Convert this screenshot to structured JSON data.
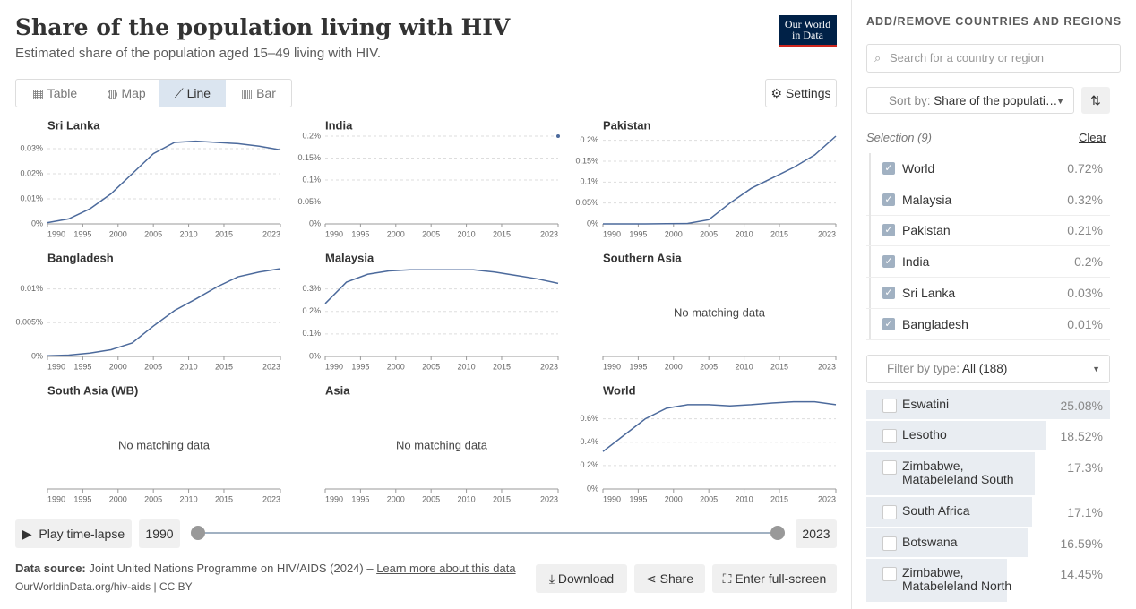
{
  "header": {
    "title": "Share of the population living with HIV",
    "subtitle": "Estimated share of the population aged 15–49 living with HIV.",
    "logo": [
      "Our World",
      "in Data"
    ]
  },
  "tabs": [
    "Table",
    "Map",
    "Line",
    "Bar"
  ],
  "active_tab": 2,
  "settings": "Settings",
  "chart_data": [
    {
      "type": "line",
      "title": "Sri Lanka",
      "color": "#4c6a9c",
      "x": [
        1990,
        1993,
        1996,
        1999,
        2002,
        2005,
        2008,
        2011,
        2014,
        2017,
        2020,
        2023
      ],
      "values": [
        0.0005,
        0.002,
        0.006,
        0.012,
        0.02,
        0.028,
        0.0325,
        0.033,
        0.0325,
        0.032,
        0.031,
        0.0295
      ],
      "xlim": [
        1990,
        2023
      ],
      "xticks": [
        1990,
        1995,
        2000,
        2005,
        2010,
        2015,
        2023
      ],
      "ylim": [
        0,
        0.035
      ],
      "yticks": [
        {
          "value": 0,
          "label": "0%"
        },
        {
          "value": 0.01,
          "label": "0.01%"
        },
        {
          "value": 0.02,
          "label": "0.02%"
        },
        {
          "value": 0.03,
          "label": "0.03%"
        }
      ],
      "grid": true
    },
    {
      "type": "line",
      "title": "India",
      "color": "#4c6a9c",
      "x": [
        1990,
        1993,
        1996,
        1999,
        2002,
        2005,
        2008,
        2011,
        2014,
        2017,
        2020,
        2023
      ],
      "values": [
        null,
        null,
        null,
        null,
        null,
        null,
        null,
        null,
        null,
        null,
        null,
        0.2
      ],
      "xlim": [
        1990,
        2023
      ],
      "xticks": [
        1990,
        1995,
        2000,
        2005,
        2010,
        2015,
        2023
      ],
      "ylim": [
        0,
        0.2
      ],
      "yticks": [
        {
          "value": 0,
          "label": "0%"
        },
        {
          "value": 0.05,
          "label": "0.05%"
        },
        {
          "value": 0.1,
          "label": "0.1%"
        },
        {
          "value": 0.15,
          "label": "0.15%"
        },
        {
          "value": 0.2,
          "label": "0.2%"
        }
      ],
      "grid": true
    },
    {
      "type": "line",
      "title": "Pakistan",
      "color": "#4c6a9c",
      "x": [
        1990,
        1993,
        1996,
        1999,
        2002,
        2005,
        2008,
        2011,
        2014,
        2017,
        2020,
        2023
      ],
      "values": [
        0,
        0,
        0,
        0.0005,
        0.001,
        0.01,
        0.05,
        0.085,
        0.11,
        0.135,
        0.165,
        0.21
      ],
      "xlim": [
        1990,
        2023
      ],
      "xticks": [
        1990,
        1995,
        2000,
        2005,
        2010,
        2015,
        2023
      ],
      "ylim": [
        0,
        0.21
      ],
      "yticks": [
        {
          "value": 0,
          "label": "0%"
        },
        {
          "value": 0.05,
          "label": "0.05%"
        },
        {
          "value": 0.1,
          "label": "0.1%"
        },
        {
          "value": 0.15,
          "label": "0.15%"
        },
        {
          "value": 0.2,
          "label": "0.2%"
        }
      ],
      "grid": true
    },
    {
      "type": "line",
      "title": "Bangladesh",
      "color": "#4c6a9c",
      "x": [
        1990,
        1993,
        1996,
        1999,
        2002,
        2005,
        2008,
        2011,
        2014,
        2017,
        2020,
        2023
      ],
      "values": [
        0.0001,
        0.0002,
        0.0005,
        0.001,
        0.002,
        0.0045,
        0.0068,
        0.0085,
        0.0103,
        0.0118,
        0.0125,
        0.013
      ],
      "xlim": [
        1990,
        2023
      ],
      "xticks": [
        1990,
        1995,
        2000,
        2005,
        2010,
        2015,
        2023
      ],
      "ylim": [
        0,
        0.013
      ],
      "yticks": [
        {
          "value": 0,
          "label": "0%"
        },
        {
          "value": 0.005,
          "label": "0.005%"
        },
        {
          "value": 0.01,
          "label": "0.01%"
        }
      ],
      "grid": true
    },
    {
      "type": "line",
      "title": "Malaysia",
      "color": "#4c6a9c",
      "x": [
        1990,
        1993,
        1996,
        1999,
        2002,
        2005,
        2008,
        2011,
        2014,
        2017,
        2020,
        2023
      ],
      "values": [
        0.235,
        0.33,
        0.365,
        0.38,
        0.385,
        0.385,
        0.385,
        0.385,
        0.375,
        0.36,
        0.345,
        0.325
      ],
      "xlim": [
        1990,
        2023
      ],
      "xticks": [
        1990,
        1995,
        2000,
        2005,
        2010,
        2015,
        2023
      ],
      "ylim": [
        0,
        0.39
      ],
      "yticks": [
        {
          "value": 0,
          "label": "0%"
        },
        {
          "value": 0.1,
          "label": "0.1%"
        },
        {
          "value": 0.2,
          "label": "0.2%"
        },
        {
          "value": 0.3,
          "label": "0.3%"
        }
      ],
      "grid": true
    },
    {
      "type": "line",
      "title": "Southern Asia",
      "note": "No matching data",
      "xlim": [
        1990,
        2023
      ],
      "xticks": [
        1990,
        1995,
        2000,
        2005,
        2010,
        2015,
        2023
      ]
    },
    {
      "type": "line",
      "title": "South Asia (WB)",
      "note": "No matching data",
      "xlim": [
        1990,
        2023
      ],
      "xticks": [
        1990,
        1995,
        2000,
        2005,
        2010,
        2015,
        2023
      ]
    },
    {
      "type": "line",
      "title": "Asia",
      "note": "No matching data",
      "xlim": [
        1990,
        2023
      ],
      "xticks": [
        1990,
        1995,
        2000,
        2005,
        2010,
        2015,
        2023
      ]
    },
    {
      "type": "line",
      "title": "World",
      "color": "#4c6a9c",
      "x": [
        1990,
        1993,
        1996,
        1999,
        2002,
        2005,
        2008,
        2011,
        2014,
        2017,
        2020,
        2023
      ],
      "values": [
        0.32,
        0.46,
        0.6,
        0.69,
        0.72,
        0.72,
        0.71,
        0.72,
        0.735,
        0.745,
        0.745,
        0.72
      ],
      "xlim": [
        1990,
        2023
      ],
      "xticks": [
        1990,
        1995,
        2000,
        2005,
        2010,
        2015,
        2023
      ],
      "ylim": [
        0,
        0.75
      ],
      "yticks": [
        {
          "value": 0,
          "label": "0%"
        },
        {
          "value": 0.2,
          "label": "0.2%"
        },
        {
          "value": 0.4,
          "label": "0.4%"
        },
        {
          "value": 0.6,
          "label": "0.6%"
        }
      ],
      "grid": true
    }
  ],
  "timeline": {
    "play": "Play time-lapse",
    "start": "1990",
    "end": "2023"
  },
  "footer": {
    "source_label": "Data source:",
    "source": "Joint United Nations Programme on HIV/AIDS (2024) – ",
    "learn_more": "Learn more about this data",
    "url": "OurWorldinData.org/hiv-aids | CC BY",
    "buttons": [
      "Download",
      "Share",
      "Enter full-screen"
    ]
  },
  "panel": {
    "heading": "ADD/REMOVE COUNTRIES AND REGIONS",
    "search_placeholder": "Search for a country or region",
    "sort_label": "Sort by:",
    "sort_value": "Share of the populati…",
    "selection": "Selection (9)",
    "clear": "Clear",
    "selected": [
      {
        "name": "World",
        "value": "0.72%"
      },
      {
        "name": "Malaysia",
        "value": "0.32%"
      },
      {
        "name": "Pakistan",
        "value": "0.21%"
      },
      {
        "name": "India",
        "value": "0.2%"
      },
      {
        "name": "Sri Lanka",
        "value": "0.03%"
      },
      {
        "name": "Bangladesh",
        "value": "0.01%"
      }
    ],
    "filter_label": "Filter by type:",
    "filter_value": "All (188)",
    "list": [
      {
        "name": "Eswatini",
        "value": 25.08,
        "label": "25.08%"
      },
      {
        "name": "Lesotho",
        "value": 18.52,
        "label": "18.52%"
      },
      {
        "name": "Zimbabwe, Matabeleland South",
        "value": 17.3,
        "label": "17.3%"
      },
      {
        "name": "South Africa",
        "value": 17.1,
        "label": "17.1%"
      },
      {
        "name": "Botswana",
        "value": 16.59,
        "label": "16.59%"
      },
      {
        "name": "Zimbabwe, Matabeleland North",
        "value": 14.45,
        "label": "14.45%"
      }
    ]
  }
}
